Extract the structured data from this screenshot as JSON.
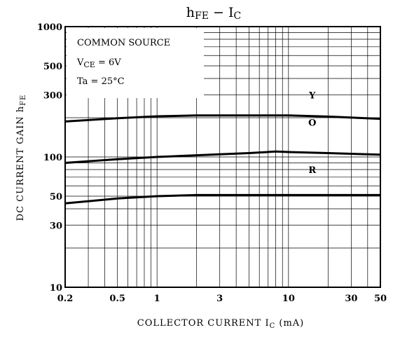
{
  "chart_data": {
    "type": "line",
    "title": {
      "main": "h",
      "main_sub": "FE",
      "sep": " − ",
      "var": "I",
      "var_sub": "C"
    },
    "xlabel": {
      "text": "COLLECTOR  CURRENT  I",
      "sub": "C",
      "unit": " (mA)"
    },
    "ylabel": {
      "text": "DC CURRENT GAIN  h",
      "sub": "FE"
    },
    "x_scale": "log",
    "y_scale": "log",
    "xlim": [
      0.2,
      50
    ],
    "ylim": [
      10,
      1000
    ],
    "x_ticks": [
      0.2,
      0.5,
      1,
      3,
      10,
      30,
      50
    ],
    "x_tick_labels": [
      "0.2",
      "0.5",
      "1",
      "3",
      "10",
      "30",
      "50"
    ],
    "y_ticks": [
      10,
      30,
      50,
      100,
      300,
      500,
      1000
    ],
    "y_tick_labels": [
      "10",
      "30",
      "50",
      "100",
      "300",
      "500",
      "1000"
    ],
    "grid": true,
    "legend_box": {
      "line1": "COMMON SOURCE",
      "line2_prefix": "V",
      "line2_sub": "CE",
      "line2_suffix": " = 6V",
      "line3": "Ta = 25°C"
    },
    "series": [
      {
        "name": "Y",
        "x": [
          0.2,
          0.5,
          1,
          2,
          5,
          10,
          20,
          50
        ],
        "y": [
          187,
          198,
          205,
          208,
          208,
          208,
          204,
          196
        ]
      },
      {
        "name": "O",
        "x": [
          0.2,
          0.5,
          1,
          2,
          5,
          8,
          10,
          20,
          50
        ],
        "y": [
          90,
          96,
          100,
          103,
          107,
          110,
          109,
          107,
          104
        ]
      },
      {
        "name": "R",
        "x": [
          0.2,
          0.5,
          1,
          2,
          5,
          10,
          20,
          50
        ],
        "y": [
          44,
          48,
          50,
          51,
          51,
          51,
          51,
          51
        ]
      }
    ]
  }
}
